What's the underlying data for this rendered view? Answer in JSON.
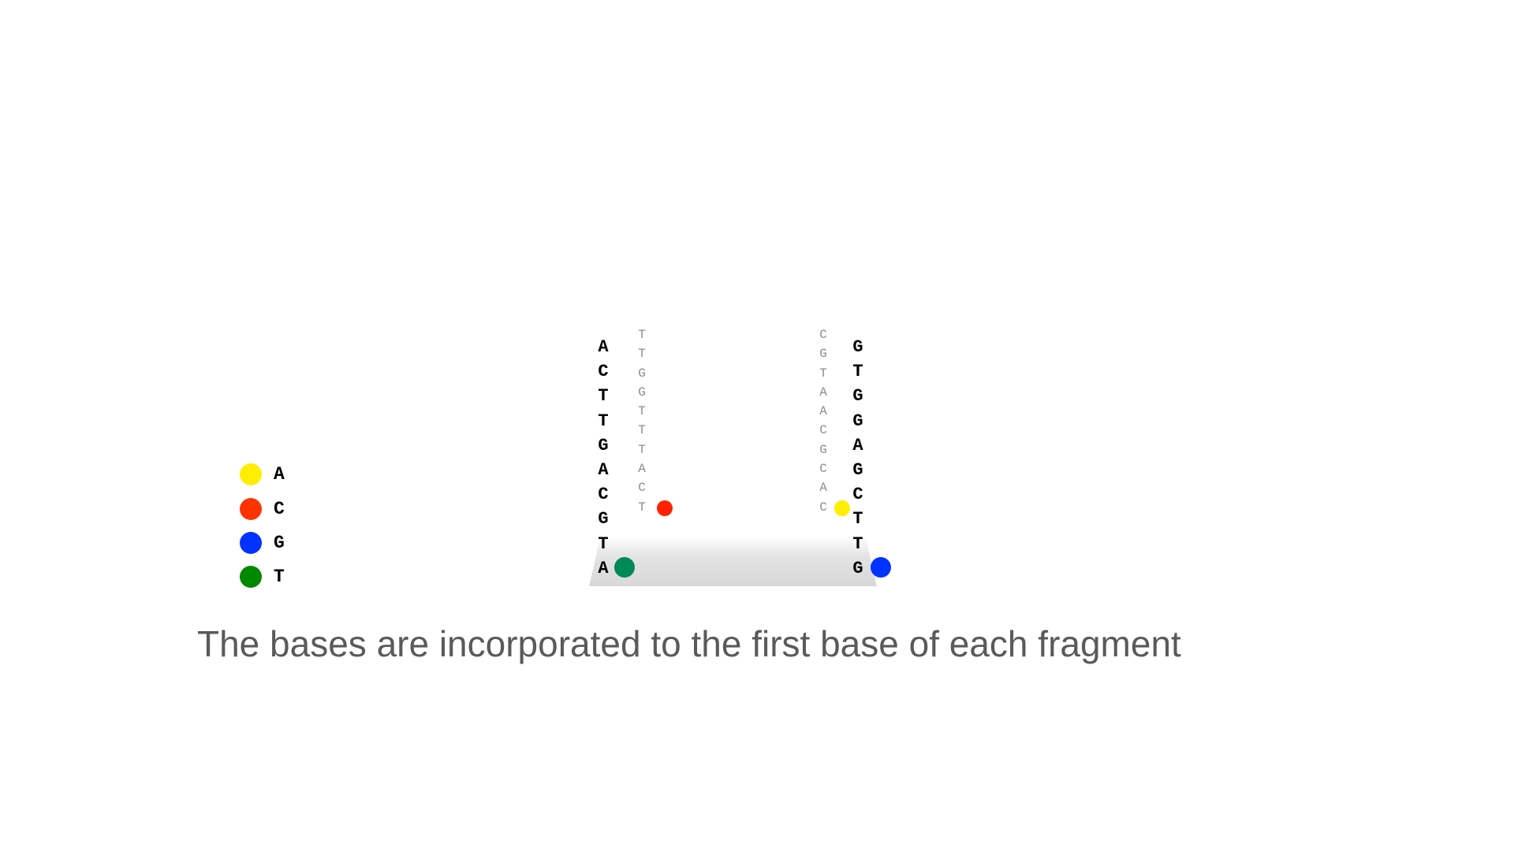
{
  "legend": [
    {
      "base": "A",
      "color": "#ffee00"
    },
    {
      "base": "C",
      "color": "#ff3300"
    },
    {
      "base": "G",
      "color": "#0033ff"
    },
    {
      "base": "T",
      "color": "#008800"
    }
  ],
  "fragments": [
    {
      "template": [
        "A",
        "C",
        "T",
        "T",
        "G",
        "A",
        "C",
        "G",
        "T",
        "A"
      ],
      "template_dot_color": "#008855",
      "growing": [
        "T",
        "T",
        "G",
        "G",
        "T",
        "T",
        "T",
        "A",
        "C",
        "T"
      ],
      "growing_dot_color": "#ff2200"
    },
    {
      "template": [
        "G",
        "T",
        "G",
        "G",
        "A",
        "G",
        "C",
        "T",
        "T",
        "G"
      ],
      "template_dot_color": "#0033ff",
      "growing": [
        "C",
        "G",
        "T",
        "A",
        "A",
        "C",
        "G",
        "C",
        "A",
        "C"
      ],
      "growing_dot_color": "#ffee00"
    }
  ],
  "caption": "The bases are incorporated to the first base of each fragment"
}
